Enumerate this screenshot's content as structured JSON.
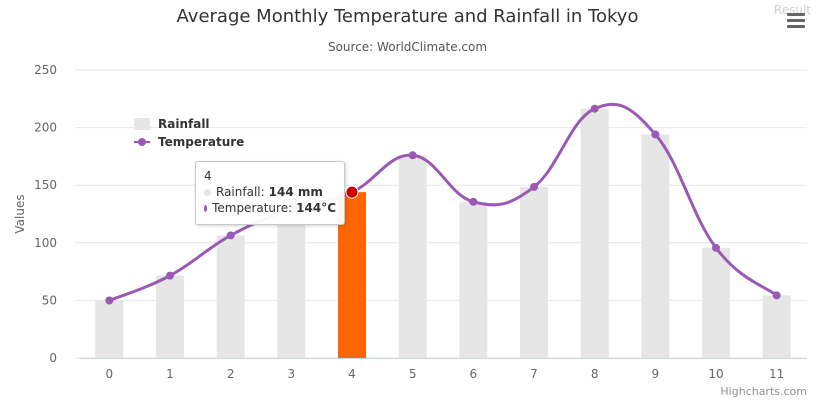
{
  "header": {
    "result_label": "Result"
  },
  "credits": "Highcharts.com",
  "colors": {
    "bar": "#e6e6e6",
    "bar_highlight": "#ff6600",
    "line": "#9b59b6",
    "line_highlight": "#cc0000",
    "grid": "#e6e6e6",
    "axis_text": "#666666"
  },
  "chart_data": {
    "type": "bar",
    "title": "Average Monthly Temperature and Rainfall in Tokyo",
    "subtitle": "Source: WorldClimate.com",
    "xlabel": "",
    "ylabel": "Values",
    "x": [
      0,
      1,
      2,
      3,
      4,
      5,
      6,
      7,
      8,
      9,
      10,
      11
    ],
    "ylim": [
      0,
      250
    ],
    "yticks": [
      0,
      50,
      100,
      150,
      200,
      250
    ],
    "grid": true,
    "legend_placement": "top-left",
    "series": [
      {
        "name": "Rainfall",
        "type": "bar",
        "unit": "mm",
        "values": [
          49.9,
          71.5,
          106.4,
          129.2,
          144.0,
          176.0,
          135.6,
          148.5,
          216.4,
          194.1,
          95.6,
          54.4
        ]
      },
      {
        "name": "Temperature",
        "type": "line",
        "unit": "°C",
        "values": [
          49.9,
          71.5,
          106.4,
          129.2,
          144.0,
          176.0,
          135.6,
          148.5,
          216.4,
          194.1,
          95.6,
          54.4
        ]
      }
    ],
    "highlight_index": 4
  },
  "tooltip": {
    "header": "4",
    "rows": [
      {
        "label": "Rainfall:",
        "value": "144 mm"
      },
      {
        "label": "Temperature:",
        "value": "144°C"
      }
    ]
  }
}
